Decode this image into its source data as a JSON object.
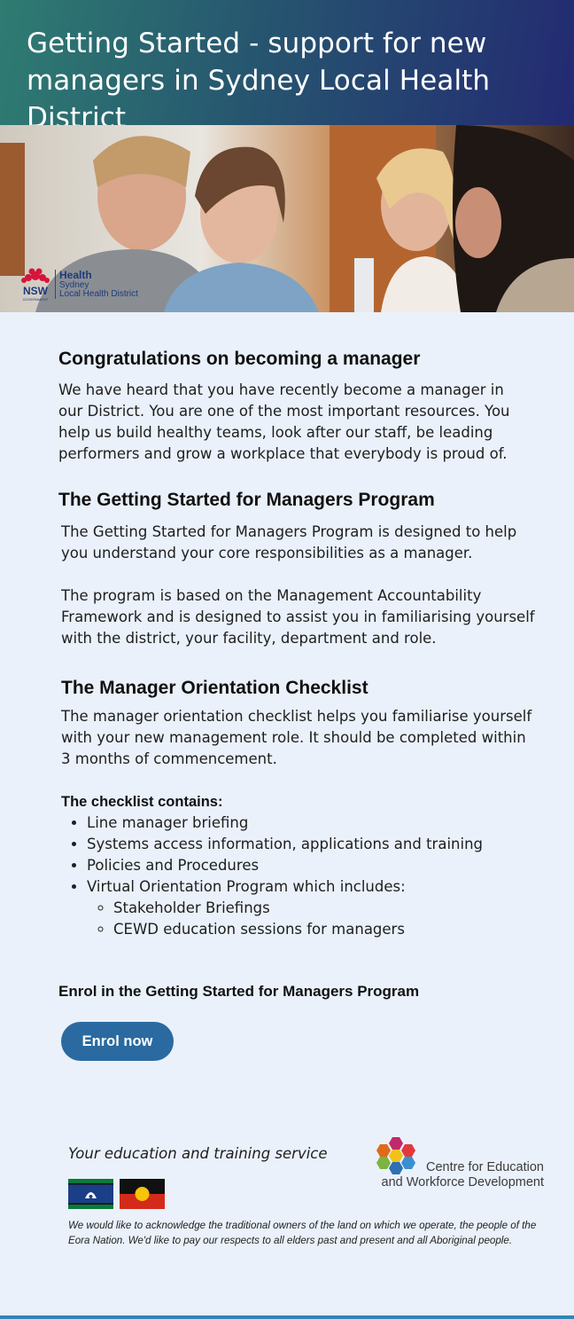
{
  "header": {
    "title": "Getting Started - support for new managers in Sydney Local Health District"
  },
  "hero": {
    "logo": {
      "nsw": "NSW",
      "government": "GOVERNMENT",
      "line1": "Health",
      "line2": "Sydney",
      "line3": "Local Health District"
    }
  },
  "section1": {
    "heading": "Congratulations on becoming a manager",
    "body": "We have heard that you have recently become a manager in our District. You are one of the most important resources. You help us build healthy teams, look after our staff, be leading performers and grow a workplace that everybody is proud of."
  },
  "section2": {
    "heading": "The Getting Started for Managers Program",
    "para1": "The Getting Started for Managers Program is designed to help you understand your core responsibilities as a manager.",
    "para2": "The program is based on the Management Accountability Framework and is designed to assist you in familiarising yourself with the district, your facility, department and role."
  },
  "section3": {
    "heading": "The Manager Orientation Checklist",
    "body": "The manager orientation checklist helps you familiarise yourself with your new management role. It should be completed within 3 months of commencement.",
    "list_label": "The checklist contains:",
    "items": [
      "Line manager briefing",
      "Systems access information, applications and training",
      "Policies and Procedures",
      "Virtual Orientation Program which includes:"
    ],
    "subitems": [
      "Stakeholder Briefings",
      "CEWD education sessions for managers"
    ]
  },
  "enrol": {
    "heading": "Enrol in the Getting Started for Managers Program",
    "button": "Enrol now"
  },
  "footer": {
    "tagline": "Your education and training service",
    "cewd_line1": "Centre for Education",
    "cewd_line2": "and Workforce Development",
    "acknowledgement": "We would like to acknowledge the traditional owners of the land on which we operate, the people of the Eora Nation. We'd like to pay our respects to all elders past and present and all Aboriginal people."
  },
  "colors": {
    "page_bg": "#eaf1fa",
    "header_gradient_start": "#2f7c72",
    "header_gradient_end": "#232a72",
    "button_bg": "#2a6aa0",
    "bottom_bar": "#2f86b8"
  },
  "icons": [
    "waratah-logo-icon",
    "torres-strait-flag-icon",
    "aboriginal-flag-icon",
    "cewd-hexagon-logo-icon"
  ]
}
